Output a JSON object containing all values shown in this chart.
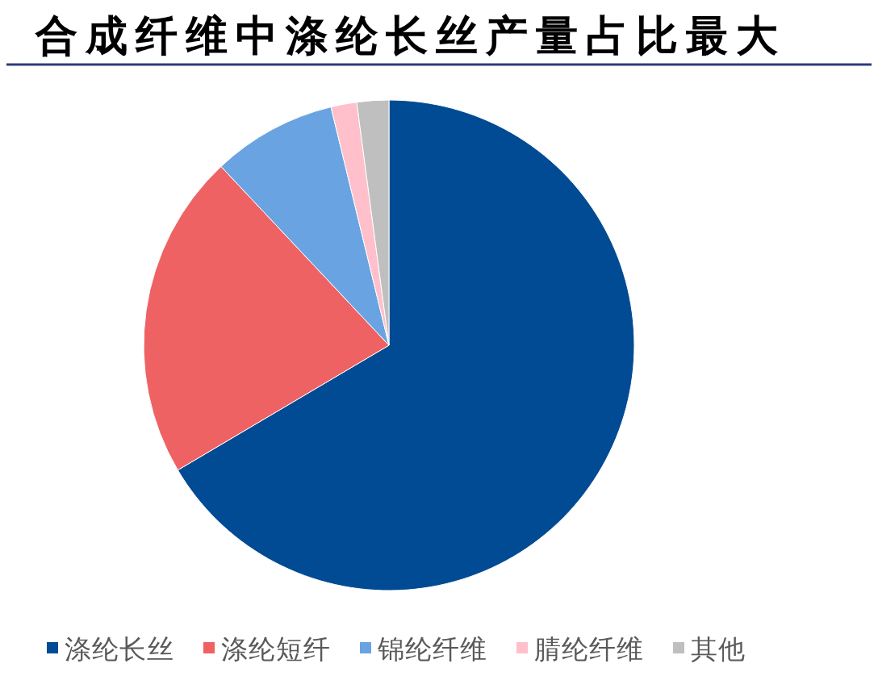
{
  "chart_data": {
    "type": "pie",
    "title": "合成纤维中涤纶长丝产量占比最大",
    "categories": [
      "涤纶长丝",
      "涤纶短纤",
      "锦纶纤维",
      "腈纶纤维",
      "其他"
    ],
    "values": [
      66.5,
      21.5,
      8.2,
      1.7,
      2.1
    ],
    "colors": [
      "#004b93",
      "#ee6264",
      "#6aa3e1",
      "#ffc0cb",
      "#bfbfbf"
    ],
    "legend": "bottom"
  }
}
